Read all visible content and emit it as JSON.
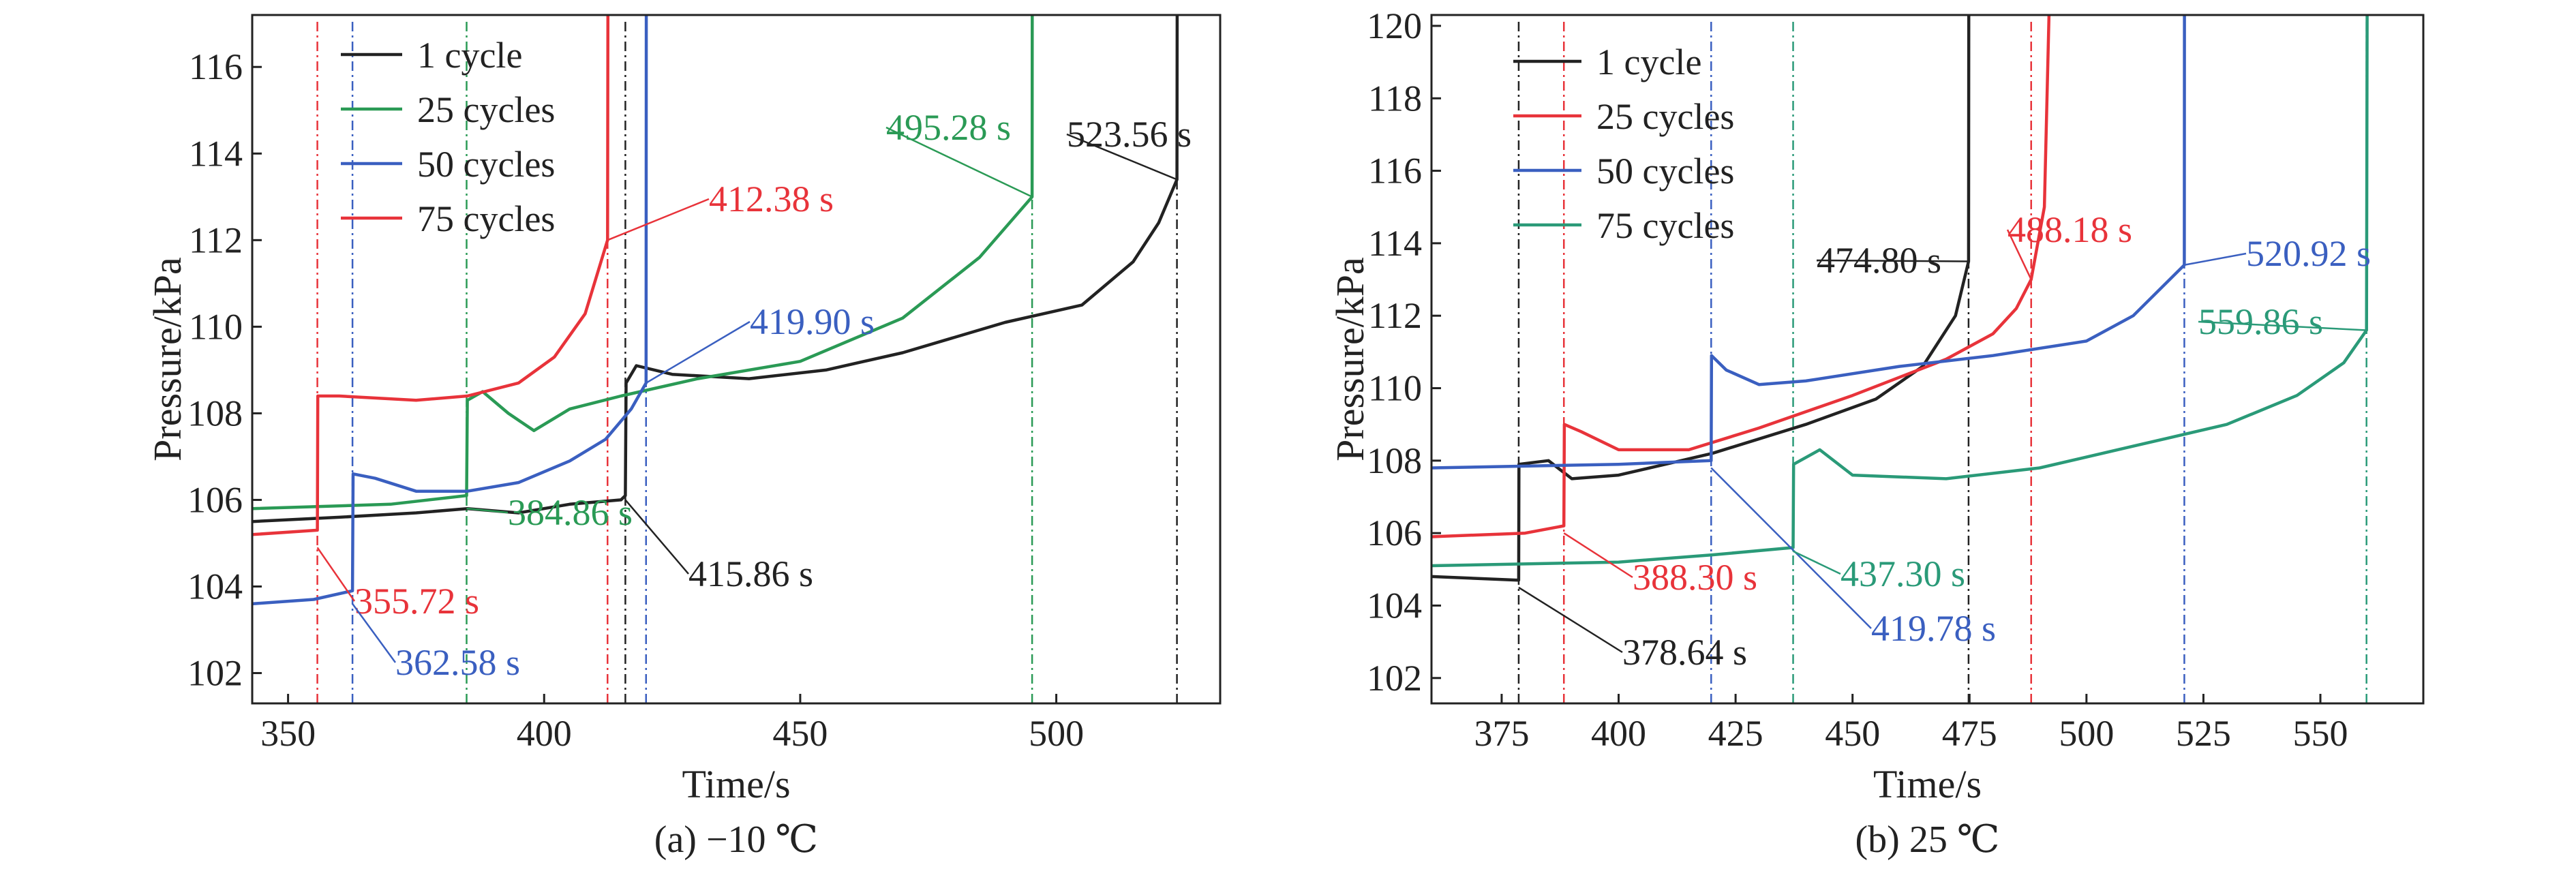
{
  "chart_data": [
    {
      "type": "line",
      "caption": "(a) −10 ℃",
      "xlabel": "Time/s",
      "ylabel": "Pressure/kPa",
      "xlim": [
        343,
        532
      ],
      "ylim": [
        101.3,
        117.2
      ],
      "xticks": [
        350,
        400,
        450,
        500
      ],
      "yticks": [
        102,
        104,
        106,
        108,
        110,
        112,
        114,
        116
      ],
      "grid": false,
      "legend_position": "top-left",
      "series": [
        {
          "name": "1 cycle",
          "color": "#222222",
          "points": [
            [
              343,
              105.5
            ],
            [
              360,
              105.6
            ],
            [
              375,
              105.7
            ],
            [
              385,
              105.8
            ],
            [
              395,
              105.7
            ],
            [
              405,
              105.9
            ],
            [
              415,
              106.0
            ],
            [
              415.86,
              106.1
            ],
            [
              416,
              108.7
            ],
            [
              418,
              109.1
            ],
            [
              425,
              108.9
            ],
            [
              440,
              108.8
            ],
            [
              455,
              109.0
            ],
            [
              470,
              109.4
            ],
            [
              490,
              110.1
            ],
            [
              505,
              110.5
            ],
            [
              515,
              111.5
            ],
            [
              520,
              112.4
            ],
            [
              523.56,
              113.4
            ],
            [
              523.6,
              117.2
            ]
          ]
        },
        {
          "name": "25 cycles",
          "color": "#2a9a55",
          "points": [
            [
              343,
              105.8
            ],
            [
              370,
              105.9
            ],
            [
              384.86,
              106.1
            ],
            [
              385,
              108.3
            ],
            [
              388,
              108.5
            ],
            [
              393,
              108.0
            ],
            [
              398,
              107.6
            ],
            [
              405,
              108.1
            ],
            [
              415,
              108.4
            ],
            [
              430,
              108.8
            ],
            [
              450,
              109.2
            ],
            [
              470,
              110.2
            ],
            [
              485,
              111.6
            ],
            [
              495.28,
              113.0
            ],
            [
              495.3,
              117.2
            ]
          ]
        },
        {
          "name": "50 cycles",
          "color": "#3a5fc0",
          "points": [
            [
              343,
              103.6
            ],
            [
              355,
              103.7
            ],
            [
              362.58,
              103.9
            ],
            [
              362.7,
              106.6
            ],
            [
              367,
              106.5
            ],
            [
              375,
              106.2
            ],
            [
              385,
              106.2
            ],
            [
              395,
              106.4
            ],
            [
              405,
              106.9
            ],
            [
              412,
              107.4
            ],
            [
              417,
              108.1
            ],
            [
              419.9,
              108.7
            ],
            [
              419.95,
              117.2
            ]
          ]
        },
        {
          "name": "75 cycles",
          "color": "#e8333a",
          "points": [
            [
              343,
              105.2
            ],
            [
              355.72,
              105.3
            ],
            [
              355.8,
              108.4
            ],
            [
              360,
              108.4
            ],
            [
              375,
              108.3
            ],
            [
              385,
              108.4
            ],
            [
              395,
              108.7
            ],
            [
              402,
              109.3
            ],
            [
              408,
              110.3
            ],
            [
              412.38,
              112.0
            ],
            [
              412.45,
              117.2
            ]
          ]
        }
      ],
      "annotations": [
        {
          "text": "355.72 s",
          "color": "#e8333a",
          "at": [
            355.72,
            104.9
          ]
        },
        {
          "text": "362.58 s",
          "color": "#3a5fc0",
          "at": [
            362.58,
            103.6
          ]
        },
        {
          "text": "384.86 s",
          "color": "#2a9a55",
          "at": [
            384.86,
            105.8
          ]
        },
        {
          "text": "415.86 s",
          "color": "#222222",
          "at": [
            415.86,
            106.0
          ]
        },
        {
          "text": "412.38 s",
          "color": "#e8333a",
          "at": [
            412.38,
            112.0
          ]
        },
        {
          "text": "419.90 s",
          "color": "#3a5fc0",
          "at": [
            419.9,
            108.7
          ]
        },
        {
          "text": "495.28 s",
          "color": "#2a9a55",
          "at": [
            495.28,
            113.0
          ]
        },
        {
          "text": "523.56 s",
          "color": "#222222",
          "at": [
            523.56,
            113.4
          ]
        }
      ],
      "markers": [
        {
          "x": 355.72,
          "color": "#e8333a"
        },
        {
          "x": 362.58,
          "color": "#3a5fc0"
        },
        {
          "x": 384.86,
          "color": "#2a9a55"
        },
        {
          "x": 412.38,
          "color": "#e8333a"
        },
        {
          "x": 415.86,
          "color": "#222222"
        },
        {
          "x": 419.9,
          "color": "#3a5fc0"
        },
        {
          "x": 495.28,
          "color": "#2a9a55"
        },
        {
          "x": 523.56,
          "color": "#222222"
        }
      ]
    },
    {
      "type": "line",
      "caption": "(b) 25 ℃",
      "xlabel": "Time/s",
      "ylabel": "Pressure/kPa",
      "xlim": [
        360,
        572
      ],
      "ylim": [
        101.3,
        120.3
      ],
      "xticks": [
        375,
        400,
        425,
        450,
        475,
        500,
        525,
        550
      ],
      "yticks": [
        102,
        104,
        106,
        108,
        110,
        112,
        114,
        116,
        118,
        120
      ],
      "grid": false,
      "legend_position": "top-left",
      "series": [
        {
          "name": "1 cycle",
          "color": "#222222",
          "points": [
            [
              360,
              104.8
            ],
            [
              378.64,
              104.7
            ],
            [
              378.7,
              107.9
            ],
            [
              385,
              108.0
            ],
            [
              390,
              107.5
            ],
            [
              400,
              107.6
            ],
            [
              420,
              108.2
            ],
            [
              440,
              109.0
            ],
            [
              455,
              109.7
            ],
            [
              465,
              110.6
            ],
            [
              472,
              112.0
            ],
            [
              474.8,
              113.5
            ],
            [
              474.85,
              120.3
            ]
          ]
        },
        {
          "name": "25 cycles",
          "color": "#e8333a",
          "points": [
            [
              360,
              105.9
            ],
            [
              380,
              106.0
            ],
            [
              388.3,
              106.2
            ],
            [
              388.4,
              109.0
            ],
            [
              392,
              108.8
            ],
            [
              400,
              108.3
            ],
            [
              415,
              108.3
            ],
            [
              430,
              108.9
            ],
            [
              450,
              109.8
            ],
            [
              470,
              110.8
            ],
            [
              480,
              111.5
            ],
            [
              485,
              112.2
            ],
            [
              488.18,
              113.0
            ],
            [
              491,
              115.0
            ],
            [
              492,
              120.3
            ]
          ]
        },
        {
          "name": "50 cycles",
          "color": "#3a5fc0",
          "points": [
            [
              360,
              107.8
            ],
            [
              400,
              107.9
            ],
            [
              419.78,
              108.0
            ],
            [
              419.85,
              110.9
            ],
            [
              423,
              110.5
            ],
            [
              430,
              110.1
            ],
            [
              440,
              110.2
            ],
            [
              460,
              110.6
            ],
            [
              480,
              110.9
            ],
            [
              500,
              111.3
            ],
            [
              510,
              112.0
            ],
            [
              520.92,
              113.4
            ],
            [
              520.95,
              120.3
            ]
          ]
        },
        {
          "name": "75 cycles",
          "color": "#2a9a78",
          "points": [
            [
              360,
              105.1
            ],
            [
              400,
              105.2
            ],
            [
              420,
              105.4
            ],
            [
              437.3,
              105.6
            ],
            [
              437.4,
              107.9
            ],
            [
              443,
              108.3
            ],
            [
              450,
              107.6
            ],
            [
              470,
              107.5
            ],
            [
              490,
              107.8
            ],
            [
              510,
              108.4
            ],
            [
              530,
              109.0
            ],
            [
              545,
              109.8
            ],
            [
              555,
              110.7
            ],
            [
              559.86,
              111.6
            ],
            [
              560,
              120.3
            ]
          ]
        }
      ],
      "annotations": [
        {
          "text": "378.64 s",
          "color": "#222222",
          "at": [
            378.64,
            104.5
          ]
        },
        {
          "text": "388.30 s",
          "color": "#e8333a",
          "at": [
            388.3,
            106.0
          ]
        },
        {
          "text": "419.78 s",
          "color": "#3a5fc0",
          "at": [
            419.78,
            107.8
          ]
        },
        {
          "text": "437.30 s",
          "color": "#2a9a78",
          "at": [
            437.3,
            105.5
          ]
        },
        {
          "text": "474.80 s",
          "color": "#222222",
          "at": [
            474.8,
            113.5
          ]
        },
        {
          "text": "488.18 s",
          "color": "#e8333a",
          "at": [
            488.18,
            113.0
          ]
        },
        {
          "text": "520.92 s",
          "color": "#3a5fc0",
          "at": [
            520.92,
            113.4
          ]
        },
        {
          "text": "559.86 s",
          "color": "#2a9a78",
          "at": [
            559.86,
            111.6
          ]
        }
      ],
      "markers": [
        {
          "x": 378.64,
          "color": "#222222"
        },
        {
          "x": 388.3,
          "color": "#e8333a"
        },
        {
          "x": 419.78,
          "color": "#3a5fc0"
        },
        {
          "x": 437.3,
          "color": "#2a9a78"
        },
        {
          "x": 474.8,
          "color": "#222222"
        },
        {
          "x": 488.18,
          "color": "#e8333a"
        },
        {
          "x": 520.92,
          "color": "#3a5fc0"
        },
        {
          "x": 559.86,
          "color": "#2a9a78"
        }
      ]
    }
  ]
}
